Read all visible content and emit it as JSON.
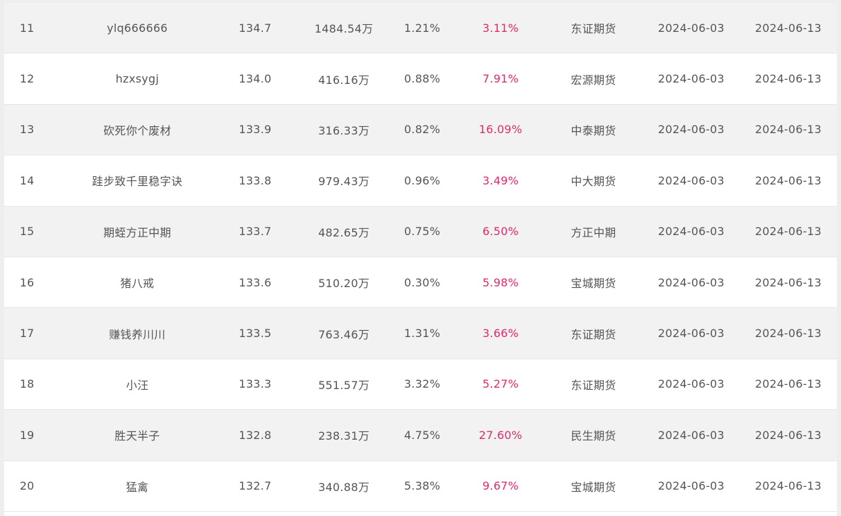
{
  "colors": {
    "row_alt": "#f2f2f2",
    "row_plain": "#ffffff",
    "text": "#555555",
    "return_text": "#e5286b"
  },
  "rows": [
    {
      "rank": "11",
      "name": "ylq666666",
      "score": "134.7",
      "equity": "1484.54万",
      "drawdown": "1.21%",
      "return": "3.11%",
      "broker": "东证期货",
      "start": "2024-06-03",
      "end": "2024-06-13"
    },
    {
      "rank": "12",
      "name": "hzxsygj",
      "score": "134.0",
      "equity": "416.16万",
      "drawdown": "0.88%",
      "return": "7.91%",
      "broker": "宏源期货",
      "start": "2024-06-03",
      "end": "2024-06-13"
    },
    {
      "rank": "13",
      "name": "砍死你个废材",
      "score": "133.9",
      "equity": "316.33万",
      "drawdown": "0.82%",
      "return": "16.09%",
      "broker": "中泰期货",
      "start": "2024-06-03",
      "end": "2024-06-13"
    },
    {
      "rank": "14",
      "name": "跬步致千里稳字诀",
      "score": "133.8",
      "equity": "979.43万",
      "drawdown": "0.96%",
      "return": "3.49%",
      "broker": "中大期货",
      "start": "2024-06-03",
      "end": "2024-06-13"
    },
    {
      "rank": "15",
      "name": "期蛭方正中期",
      "score": "133.7",
      "equity": "482.65万",
      "drawdown": "0.75%",
      "return": "6.50%",
      "broker": "方正中期",
      "start": "2024-06-03",
      "end": "2024-06-13"
    },
    {
      "rank": "16",
      "name": "猪八戒",
      "score": "133.6",
      "equity": "510.20万",
      "drawdown": "0.30%",
      "return": "5.98%",
      "broker": "宝城期货",
      "start": "2024-06-03",
      "end": "2024-06-13"
    },
    {
      "rank": "17",
      "name": "赚钱养川川",
      "score": "133.5",
      "equity": "763.46万",
      "drawdown": "1.31%",
      "return": "3.66%",
      "broker": "东证期货",
      "start": "2024-06-03",
      "end": "2024-06-13"
    },
    {
      "rank": "18",
      "name": "小汪",
      "score": "133.3",
      "equity": "551.57万",
      "drawdown": "3.32%",
      "return": "5.27%",
      "broker": "东证期货",
      "start": "2024-06-03",
      "end": "2024-06-13"
    },
    {
      "rank": "19",
      "name": "胜天半子",
      "score": "132.8",
      "equity": "238.31万",
      "drawdown": "4.75%",
      "return": "27.60%",
      "broker": "民生期货",
      "start": "2024-06-03",
      "end": "2024-06-13"
    },
    {
      "rank": "20",
      "name": "猛禽",
      "score": "132.7",
      "equity": "340.88万",
      "drawdown": "5.38%",
      "return": "9.67%",
      "broker": "宝城期货",
      "start": "2024-06-03",
      "end": "2024-06-13"
    }
  ]
}
